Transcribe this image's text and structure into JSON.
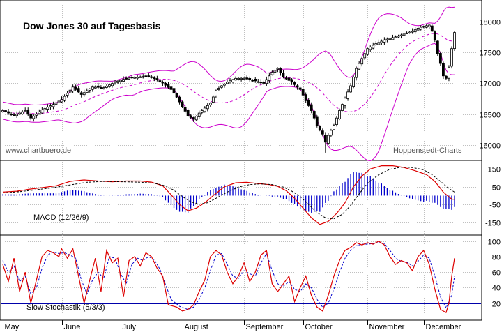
{
  "chart_data": {
    "type": "candlestick",
    "title": "Dow Jones 30 auf Tagesbasis",
    "source_left": "www.chartbuero.de",
    "source_right": "Hoppenstedt-Charts",
    "months": [
      {
        "label": "May",
        "index": 0
      },
      {
        "label": "June",
        "index": 21
      },
      {
        "label": "July",
        "index": 42
      },
      {
        "label": "August",
        "index": 64
      },
      {
        "label": "September",
        "index": 86
      },
      {
        "label": "October",
        "index": 107
      },
      {
        "label": "November",
        "index": 130
      },
      {
        "label": "December",
        "index": 150
      }
    ],
    "price_panel": {
      "y_ticks": [
        16000,
        16500,
        17000,
        17500,
        18000
      ],
      "ylim": [
        15800,
        18300
      ],
      "reference_lines": [
        16580,
        17140
      ],
      "close_anchors": [
        [
          0,
          16560
        ],
        [
          4,
          16480
        ],
        [
          8,
          16560
        ],
        [
          10,
          16440
        ],
        [
          14,
          16570
        ],
        [
          18,
          16660
        ],
        [
          21,
          16740
        ],
        [
          25,
          16940
        ],
        [
          28,
          16820
        ],
        [
          32,
          16940
        ],
        [
          36,
          16930
        ],
        [
          40,
          17020
        ],
        [
          44,
          17080
        ],
        [
          48,
          17100
        ],
        [
          52,
          17120
        ],
        [
          56,
          17040
        ],
        [
          60,
          16900
        ],
        [
          62,
          16780
        ],
        [
          64,
          16620
        ],
        [
          66,
          16480
        ],
        [
          68,
          16420
        ],
        [
          70,
          16520
        ],
        [
          72,
          16600
        ],
        [
          74,
          16680
        ],
        [
          76,
          16880
        ],
        [
          78,
          16960
        ],
        [
          80,
          17020
        ],
        [
          83,
          17080
        ],
        [
          86,
          17080
        ],
        [
          90,
          17040
        ],
        [
          93,
          17000
        ],
        [
          96,
          17180
        ],
        [
          98,
          17240
        ],
        [
          100,
          17100
        ],
        [
          103,
          17020
        ],
        [
          106,
          16900
        ],
        [
          108,
          16720
        ],
        [
          110,
          16560
        ],
        [
          112,
          16320
        ],
        [
          114,
          16180
        ],
        [
          115,
          16050
        ],
        [
          116,
          16160
        ],
        [
          118,
          16320
        ],
        [
          120,
          16560
        ],
        [
          122,
          16760
        ],
        [
          124,
          16960
        ],
        [
          126,
          17240
        ],
        [
          128,
          17400
        ],
        [
          130,
          17560
        ],
        [
          133,
          17640
        ],
        [
          136,
          17700
        ],
        [
          140,
          17750
        ],
        [
          144,
          17810
        ],
        [
          146,
          17840
        ],
        [
          148,
          17890
        ],
        [
          150,
          17920
        ],
        [
          152,
          17940
        ],
        [
          153,
          17840
        ],
        [
          154,
          17700
        ],
        [
          155,
          17480
        ],
        [
          156,
          17320
        ],
        [
          157,
          17120
        ],
        [
          158,
          17080
        ],
        [
          159,
          17260
        ],
        [
          160,
          17560
        ],
        [
          161,
          17820
        ]
      ]
    },
    "macd_panel": {
      "label": "MACD (12/26/9)",
      "y_ticks": [
        -150,
        -50,
        50,
        150
      ],
      "ylim": [
        -210,
        190
      ],
      "macd_anchors": [
        [
          0,
          20
        ],
        [
          5,
          25
        ],
        [
          9,
          35
        ],
        [
          14,
          45
        ],
        [
          19,
          55
        ],
        [
          24,
          80
        ],
        [
          29,
          88
        ],
        [
          34,
          82
        ],
        [
          39,
          78
        ],
        [
          44,
          82
        ],
        [
          49,
          82
        ],
        [
          53,
          76
        ],
        [
          57,
          55
        ],
        [
          60,
          5
        ],
        [
          63,
          -50
        ],
        [
          66,
          -85
        ],
        [
          69,
          -70
        ],
        [
          72,
          -40
        ],
        [
          75,
          0
        ],
        [
          79,
          50
        ],
        [
          83,
          72
        ],
        [
          87,
          75
        ],
        [
          91,
          68
        ],
        [
          95,
          62
        ],
        [
          98,
          52
        ],
        [
          101,
          28
        ],
        [
          104,
          -15
        ],
        [
          107,
          -70
        ],
        [
          110,
          -125
        ],
        [
          113,
          -162
        ],
        [
          116,
          -145
        ],
        [
          119,
          -100
        ],
        [
          122,
          -40
        ],
        [
          125,
          50
        ],
        [
          128,
          110
        ],
        [
          131,
          150
        ],
        [
          135,
          168
        ],
        [
          139,
          168
        ],
        [
          143,
          158
        ],
        [
          147,
          140
        ],
        [
          151,
          118
        ],
        [
          154,
          80
        ],
        [
          157,
          20
        ],
        [
          160,
          -20
        ]
      ],
      "signal_anchors": [
        [
          0,
          15
        ],
        [
          6,
          22
        ],
        [
          12,
          33
        ],
        [
          18,
          45
        ],
        [
          24,
          60
        ],
        [
          30,
          75
        ],
        [
          36,
          80
        ],
        [
          42,
          78
        ],
        [
          48,
          76
        ],
        [
          54,
          70
        ],
        [
          58,
          55
        ],
        [
          61,
          30
        ],
        [
          64,
          -5
        ],
        [
          67,
          -35
        ],
        [
          70,
          -48
        ],
        [
          73,
          -40
        ],
        [
          76,
          -15
        ],
        [
          80,
          20
        ],
        [
          84,
          48
        ],
        [
          88,
          62
        ],
        [
          92,
          66
        ],
        [
          96,
          62
        ],
        [
          100,
          48
        ],
        [
          103,
          25
        ],
        [
          106,
          -5
        ],
        [
          109,
          -50
        ],
        [
          112,
          -95
        ],
        [
          115,
          -125
        ],
        [
          118,
          -130
        ],
        [
          121,
          -105
        ],
        [
          124,
          -55
        ],
        [
          127,
          10
        ],
        [
          130,
          70
        ],
        [
          134,
          118
        ],
        [
          138,
          148
        ],
        [
          142,
          160
        ],
        [
          146,
          158
        ],
        [
          150,
          145
        ],
        [
          153,
          118
        ],
        [
          156,
          80
        ],
        [
          159,
          40
        ],
        [
          161,
          20
        ]
      ]
    },
    "stoch_panel": {
      "label": "Slow Stochastik (5/3/3)",
      "y_ticks": [
        20,
        40,
        60,
        80,
        100
      ],
      "ylim": [
        0,
        106
      ],
      "reference_lines": [
        20,
        80
      ],
      "k_anchors": [
        [
          0,
          70
        ],
        [
          2,
          48
        ],
        [
          4,
          78
        ],
        [
          6,
          35
        ],
        [
          8,
          60
        ],
        [
          10,
          20
        ],
        [
          12,
          50
        ],
        [
          14,
          80
        ],
        [
          16,
          88
        ],
        [
          18,
          85
        ],
        [
          20,
          80
        ],
        [
          21,
          90
        ],
        [
          23,
          78
        ],
        [
          25,
          90
        ],
        [
          27,
          55
        ],
        [
          29,
          20
        ],
        [
          31,
          50
        ],
        [
          33,
          78
        ],
        [
          35,
          35
        ],
        [
          37,
          88
        ],
        [
          39,
          72
        ],
        [
          41,
          78
        ],
        [
          43,
          28
        ],
        [
          45,
          75
        ],
        [
          47,
          80
        ],
        [
          49,
          68
        ],
        [
          51,
          85
        ],
        [
          53,
          80
        ],
        [
          55,
          65
        ],
        [
          57,
          55
        ],
        [
          59,
          18
        ],
        [
          62,
          15
        ],
        [
          64,
          10
        ],
        [
          66,
          12
        ],
        [
          68,
          18
        ],
        [
          70,
          35
        ],
        [
          72,
          50
        ],
        [
          74,
          80
        ],
        [
          76,
          88
        ],
        [
          78,
          82
        ],
        [
          80,
          60
        ],
        [
          82,
          45
        ],
        [
          84,
          55
        ],
        [
          86,
          72
        ],
        [
          88,
          48
        ],
        [
          90,
          60
        ],
        [
          92,
          82
        ],
        [
          94,
          88
        ],
        [
          96,
          45
        ],
        [
          98,
          35
        ],
        [
          100,
          45
        ],
        [
          102,
          55
        ],
        [
          104,
          22
        ],
        [
          106,
          40
        ],
        [
          108,
          55
        ],
        [
          110,
          30
        ],
        [
          112,
          15
        ],
        [
          114,
          10
        ],
        [
          116,
          30
        ],
        [
          118,
          55
        ],
        [
          120,
          75
        ],
        [
          122,
          88
        ],
        [
          124,
          92
        ],
        [
          126,
          98
        ],
        [
          128,
          95
        ],
        [
          130,
          98
        ],
        [
          132,
          96
        ],
        [
          134,
          100
        ],
        [
          136,
          95
        ],
        [
          138,
          80
        ],
        [
          140,
          70
        ],
        [
          142,
          75
        ],
        [
          144,
          72
        ],
        [
          146,
          62
        ],
        [
          148,
          80
        ],
        [
          150,
          88
        ],
        [
          152,
          70
        ],
        [
          154,
          38
        ],
        [
          156,
          12
        ],
        [
          158,
          8
        ],
        [
          159,
          20
        ],
        [
          160,
          55
        ],
        [
          161,
          78
        ]
      ],
      "d_anchors": [
        [
          0,
          75
        ],
        [
          2,
          60
        ],
        [
          4,
          68
        ],
        [
          6,
          48
        ],
        [
          8,
          55
        ],
        [
          10,
          32
        ],
        [
          12,
          40
        ],
        [
          14,
          65
        ],
        [
          16,
          82
        ],
        [
          18,
          86
        ],
        [
          20,
          84
        ],
        [
          22,
          85
        ],
        [
          24,
          82
        ],
        [
          26,
          78
        ],
        [
          28,
          50
        ],
        [
          30,
          32
        ],
        [
          32,
          50
        ],
        [
          34,
          60
        ],
        [
          36,
          52
        ],
        [
          38,
          80
        ],
        [
          40,
          78
        ],
        [
          42,
          58
        ],
        [
          44,
          45
        ],
        [
          46,
          70
        ],
        [
          48,
          78
        ],
        [
          50,
          75
        ],
        [
          52,
          80
        ],
        [
          54,
          76
        ],
        [
          56,
          64
        ],
        [
          58,
          44
        ],
        [
          60,
          25
        ],
        [
          63,
          16
        ],
        [
          66,
          12
        ],
        [
          68,
          15
        ],
        [
          70,
          25
        ],
        [
          72,
          40
        ],
        [
          74,
          62
        ],
        [
          76,
          82
        ],
        [
          78,
          84
        ],
        [
          80,
          70
        ],
        [
          82,
          55
        ],
        [
          84,
          52
        ],
        [
          86,
          62
        ],
        [
          88,
          58
        ],
        [
          90,
          55
        ],
        [
          92,
          72
        ],
        [
          94,
          84
        ],
        [
          96,
          62
        ],
        [
          98,
          45
        ],
        [
          100,
          42
        ],
        [
          102,
          48
        ],
        [
          104,
          38
        ],
        [
          106,
          35
        ],
        [
          108,
          45
        ],
        [
          110,
          40
        ],
        [
          112,
          25
        ],
        [
          114,
          15
        ],
        [
          116,
          20
        ],
        [
          118,
          38
        ],
        [
          120,
          60
        ],
        [
          122,
          78
        ],
        [
          124,
          88
        ],
        [
          126,
          94
        ],
        [
          128,
          96
        ],
        [
          130,
          96
        ],
        [
          132,
          97
        ],
        [
          134,
          98
        ],
        [
          136,
          97
        ],
        [
          138,
          88
        ],
        [
          140,
          78
        ],
        [
          142,
          74
        ],
        [
          144,
          73
        ],
        [
          146,
          68
        ],
        [
          148,
          74
        ],
        [
          150,
          82
        ],
        [
          152,
          78
        ],
        [
          154,
          55
        ],
        [
          156,
          28
        ],
        [
          158,
          14
        ],
        [
          160,
          30
        ],
        [
          161,
          55
        ]
      ]
    },
    "colors": {
      "grid": "#c0c0c0",
      "bollinger": "#cc00cc",
      "moving_average": "#cc00cc",
      "candle": "#000000",
      "macd_line": "#dd0000",
      "signal_line": "#000000",
      "histogram": "#0000cc",
      "stoch_k": "#dd0000",
      "stoch_d": "#0000cc",
      "stoch_levels": "#0000aa",
      "panel_border": "#000000"
    }
  }
}
